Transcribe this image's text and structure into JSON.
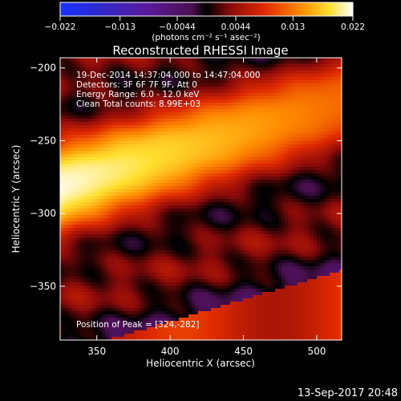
{
  "chart_data": {
    "type": "heatmap",
    "title": "Reconstructed RHESSI Image",
    "colorbar": {
      "ticks": [
        "−0.022",
        "−0.013",
        "−0.0044",
        "0.0044",
        "0.013",
        "0.022"
      ],
      "tick_values": [
        -0.022,
        -0.013,
        -0.0044,
        0.0044,
        0.013,
        0.022
      ],
      "range": [
        -0.022,
        0.022
      ],
      "units_label": "(photons cm⁻² s⁻¹ asec⁻²)"
    },
    "info_lines": [
      "19-Dec-2014 14:37:04.000 to 14:47:04.000",
      "Detectors: 3F 6F 7F 9F, Att 0",
      "Energy Range: 6.0 - 12.0 keV",
      "Clean     Total counts: 8.99E+03"
    ],
    "peak_text": "Position of Peak = [324,-282]",
    "xlabel": "Heliocentric X (arcsec)",
    "ylabel": "Heliocentric Y (arcsec)",
    "xlim": [
      325,
      517
    ],
    "ylim": [
      -387,
      -193
    ],
    "x_ticks": [
      350,
      400,
      450,
      500
    ],
    "y_ticks": [
      -200,
      -250,
      -300,
      -350
    ],
    "x_tick_labels": [
      "350",
      "400",
      "450",
      "500"
    ],
    "y_tick_labels": [
      "−200",
      "−250",
      "−300",
      "−350"
    ],
    "peak": {
      "x": 324,
      "y": -282
    },
    "peak_value": 0.022,
    "band_slope": 0.3,
    "band_width": 40,
    "stripe_period": 82,
    "colormap": "rhessi-blue-purple-red-yellow-white"
  },
  "footer_date": "13-Sep-2017 20:48"
}
